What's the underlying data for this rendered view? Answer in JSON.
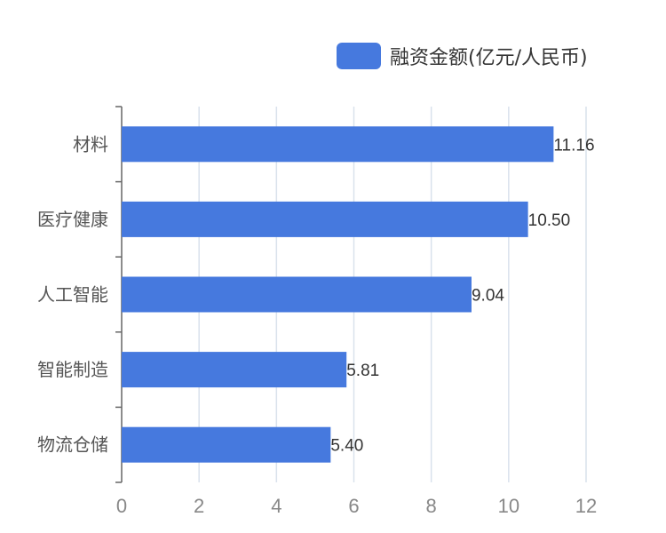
{
  "legend": {
    "label": "融资金额(亿元/人民币)",
    "color": "#4679de"
  },
  "chart_data": {
    "type": "bar",
    "orientation": "horizontal",
    "categories": [
      "材料",
      "医疗健康",
      "人工智能",
      "智能制造",
      "物流仓储"
    ],
    "series": [
      {
        "name": "融资金额(亿元/人民币)",
        "values": [
          11.16,
          10.5,
          9.04,
          5.81,
          5.4
        ]
      }
    ],
    "data_labels": [
      "11.16",
      "10.50",
      "9.04",
      "5.81",
      "5.40"
    ],
    "x_ticks": [
      0,
      2,
      4,
      6,
      8,
      10,
      12
    ],
    "xlim": [
      0,
      12
    ],
    "xlabel": "",
    "ylabel": "",
    "grid": "vertical",
    "legend_position": "top-right",
    "colors": {
      "bar": "#4679de",
      "grid": "#d9e2ec",
      "axis": "#666666",
      "tick_label": "#888888",
      "category_label": "#555555",
      "value_label": "#333333"
    }
  }
}
